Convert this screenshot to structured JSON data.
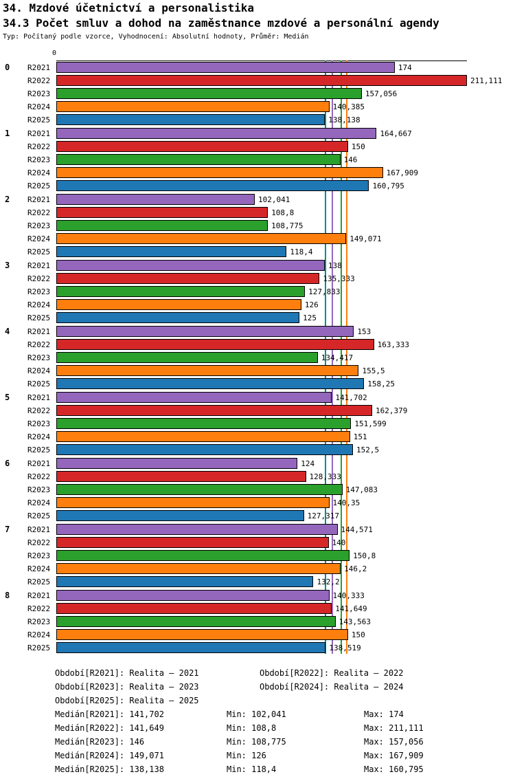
{
  "header": {
    "title": "34. Mzdové účetnictví a personalistika",
    "subtitle": "34.3 Počet smluv a dohod na zaměstnance mzdové a personální agendy",
    "meta": "Typ: Počítaný podle vzorce, Vyhodnocení: Absolutní hodnoty, Průměr: Medián"
  },
  "chart_data": {
    "type": "bar",
    "orientation": "horizontal",
    "title": "34.3 Počet smluv a dohod na zaměstnance mzdové a personální agendy",
    "axis": {
      "origin_label": "0",
      "min": 0,
      "max": 211.111
    },
    "series_labels": [
      "R2021",
      "R2022",
      "R2023",
      "R2024",
      "R2025"
    ],
    "series_colors": {
      "R2021": "#9467bd",
      "R2022": "#d62728",
      "R2023": "#2ca02c",
      "R2024": "#ff7f0e",
      "R2025": "#1f77b4"
    },
    "groups": [
      {
        "label": "0",
        "values": [
          174,
          211.111,
          157.056,
          140.385,
          138.138
        ],
        "display": [
          "174",
          "211,111",
          "157,056",
          "140,385",
          "138,138"
        ]
      },
      {
        "label": "1",
        "values": [
          164.667,
          150,
          146,
          167.909,
          160.795
        ],
        "display": [
          "164,667",
          "150",
          "146",
          "167,909",
          "160,795"
        ]
      },
      {
        "label": "2",
        "values": [
          102.041,
          108.8,
          108.775,
          149.071,
          118.4
        ],
        "display": [
          "102,041",
          "108,8",
          "108,775",
          "149,071",
          "118,4"
        ]
      },
      {
        "label": "3",
        "values": [
          138,
          135.333,
          127.833,
          126,
          125
        ],
        "display": [
          "138",
          "135,333",
          "127,833",
          "126",
          "125"
        ]
      },
      {
        "label": "4",
        "values": [
          153,
          163.333,
          134.417,
          155.5,
          158.25
        ],
        "display": [
          "153",
          "163,333",
          "134,417",
          "155,5",
          "158,25"
        ]
      },
      {
        "label": "5",
        "values": [
          141.702,
          162.379,
          151.599,
          151,
          152.5
        ],
        "display": [
          "141,702",
          "162,379",
          "151,599",
          "151",
          "152,5"
        ]
      },
      {
        "label": "6",
        "values": [
          124,
          128.333,
          147.083,
          140.35,
          127.317
        ],
        "display": [
          "124",
          "128,333",
          "147,083",
          "140,35",
          "127,317"
        ]
      },
      {
        "label": "7",
        "values": [
          144.571,
          140,
          150.8,
          146.2,
          132.2
        ],
        "display": [
          "144,571",
          "140",
          "150,8",
          "146,2",
          "132,2"
        ]
      },
      {
        "label": "8",
        "values": [
          140.333,
          141.649,
          143.563,
          150,
          138.519
        ],
        "display": [
          "140,333",
          "141,649",
          "143,563",
          "150",
          "138,519"
        ]
      }
    ],
    "medians": [
      {
        "series": "R2025",
        "value": 138.138,
        "line_color": "#008b8b"
      },
      {
        "series": "R2022",
        "value": 141.649,
        "line_color": "#d62728"
      },
      {
        "series": "R2021",
        "value": 141.702,
        "line_color": "#9467bd"
      },
      {
        "series": "R2023",
        "value": 146,
        "line_color": "#2ca02c"
      },
      {
        "series": "R2024",
        "value": 149.071,
        "line_color": "#ff7f0e"
      }
    ]
  },
  "legend": {
    "rows": [
      {
        "col1": "Období[R2021]: Realita – 2021",
        "col2": "Období[R2022]: Realita – 2022"
      },
      {
        "col1": "Období[R2023]: Realita – 2023",
        "col2": "Období[R2024]: Realita – 2024"
      },
      {
        "col1": "Období[R2025]: Realita – 2025",
        "col2": ""
      }
    ]
  },
  "stats": {
    "rows": [
      {
        "median": "Medián[R2021]: 141,702",
        "min": "Min: 102,041",
        "max": "Max: 174"
      },
      {
        "median": "Medián[R2022]: 141,649",
        "min": "Min: 108,8",
        "max": "Max: 211,111"
      },
      {
        "median": "Medián[R2023]: 146",
        "min": "Min: 108,775",
        "max": "Max: 157,056"
      },
      {
        "median": "Medián[R2024]: 149,071",
        "min": "Min: 126",
        "max": "Max: 167,909"
      },
      {
        "median": "Medián[R2025]: 138,138",
        "min": "Min: 118,4",
        "max": "Max: 160,795"
      }
    ]
  }
}
